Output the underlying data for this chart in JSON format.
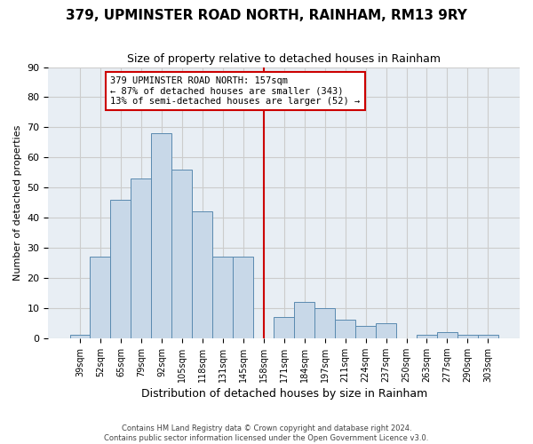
{
  "title": "379, UPMINSTER ROAD NORTH, RAINHAM, RM13 9RY",
  "subtitle": "Size of property relative to detached houses in Rainham",
  "xlabel": "Distribution of detached houses by size in Rainham",
  "ylabel": "Number of detached properties",
  "bin_labels": [
    "39sqm",
    "52sqm",
    "65sqm",
    "79sqm",
    "92sqm",
    "105sqm",
    "118sqm",
    "131sqm",
    "145sqm",
    "158sqm",
    "171sqm",
    "184sqm",
    "197sqm",
    "211sqm",
    "224sqm",
    "237sqm",
    "250sqm",
    "263sqm",
    "277sqm",
    "290sqm",
    "303sqm"
  ],
  "bar_values": [
    1,
    27,
    46,
    53,
    68,
    56,
    42,
    27,
    27,
    0,
    7,
    12,
    10,
    6,
    4,
    5,
    0,
    1,
    2,
    1,
    1
  ],
  "bar_color": "#c8d8e8",
  "bar_edge_color": "#5a8ab0",
  "vline_color": "#cc0000",
  "ylim": [
    0,
    90
  ],
  "yticks": [
    0,
    10,
    20,
    30,
    40,
    50,
    60,
    70,
    80,
    90
  ],
  "annotation_title": "379 UPMINSTER ROAD NORTH: 157sqm",
  "annotation_line1": "← 87% of detached houses are smaller (343)",
  "annotation_line2": "13% of semi-detached houses are larger (52) →",
  "annotation_box_color": "#cc0000",
  "footer_line1": "Contains HM Land Registry data © Crown copyright and database right 2024.",
  "footer_line2": "Contains public sector information licensed under the Open Government Licence v3.0.",
  "grid_color": "#cccccc",
  "background_color": "#ffffff",
  "plot_bg_color": "#e8eef4"
}
